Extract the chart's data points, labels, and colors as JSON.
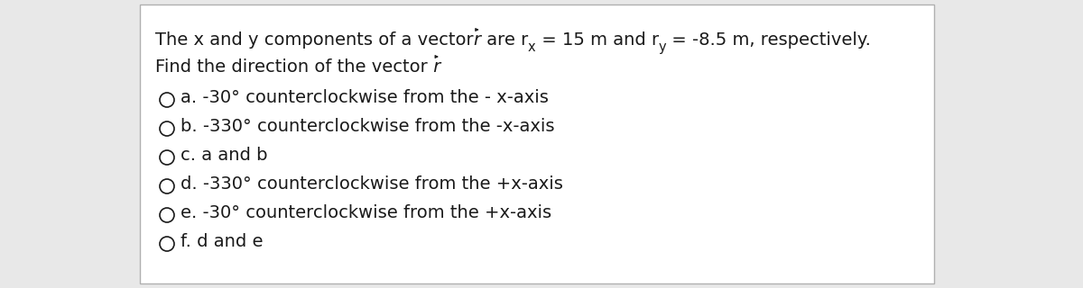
{
  "background_color": "#e8e8e8",
  "box_background": "#ffffff",
  "border_color": "#b0b0b0",
  "text_color": "#1a1a1a",
  "options": [
    {
      "label": "a.",
      "text": " -30° counterclockwise from the - x-axis"
    },
    {
      "label": "b.",
      "text": " -330° counterclockwise from the -x-axis"
    },
    {
      "label": "c.",
      "text": " a and b"
    },
    {
      "label": "d.",
      "text": " -330° counterclockwise from the +x-axis"
    },
    {
      "label": "e.",
      "text": " -30° counterclockwise from the +x-axis"
    },
    {
      "label": "f.",
      "text": " d and e"
    }
  ],
  "font_size": 14,
  "figsize": [
    12.0,
    3.2
  ],
  "dpi": 100
}
